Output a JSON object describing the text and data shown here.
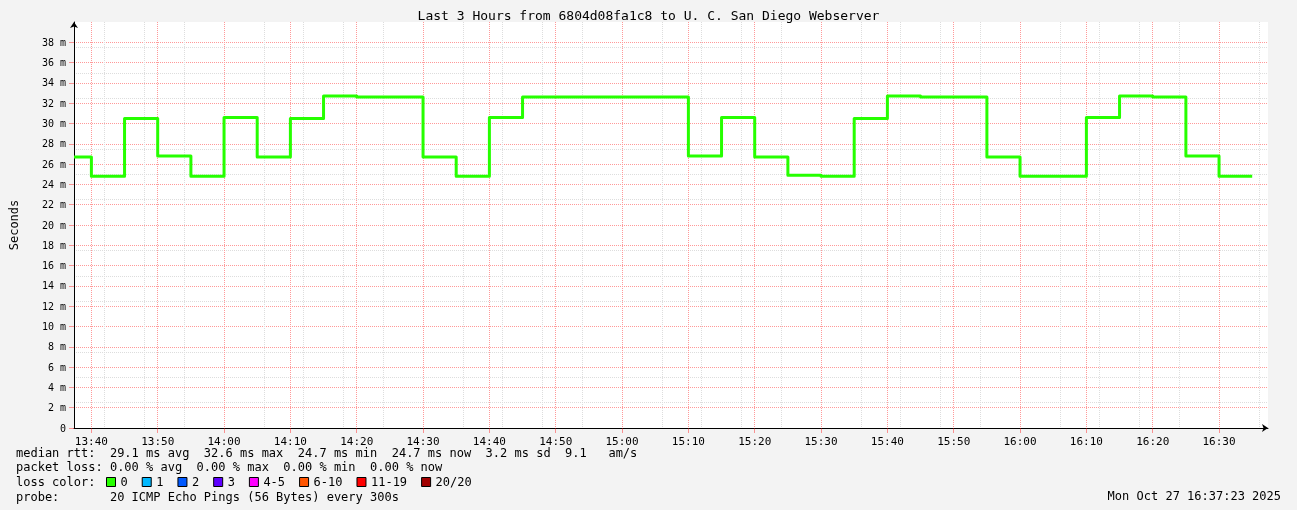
{
  "chart_data": {
    "type": "step",
    "title": "Last 3 Hours from 6804d08fa1c8 to U. C. San Diego Webserver",
    "ylabel": "Seconds",
    "legend_title": "loss color:",
    "x": [
      13.623,
      13.6667,
      13.75,
      13.8333,
      13.9167,
      14,
      14.0833,
      14.1667,
      14.25,
      14.3333,
      14.4167,
      14.5,
      14.5833,
      14.6667,
      14.75,
      14.8333,
      14.9167,
      15,
      15.0833,
      15.1667,
      15.25,
      15.3333,
      15.4167,
      15.5,
      15.5833,
      15.6667,
      15.75,
      15.8333,
      15.9167,
      16,
      16.0833,
      16.1667,
      16.25,
      16.3333,
      16.4167,
      16.5,
      16.5833
    ],
    "series": [
      {
        "name": "0",
        "color": "#26ff00",
        "values": [
          26.7,
          24.8,
          30.5,
          26.8,
          24.8,
          30.6,
          26.7,
          30.5,
          32.7,
          32.6,
          32.6,
          26.7,
          24.8,
          30.6,
          32.6,
          32.6,
          32.6,
          32.6,
          32.6,
          26.8,
          30.6,
          26.7,
          24.9,
          24.8,
          30.5,
          32.7,
          32.6,
          32.6,
          26.7,
          24.8,
          24.8,
          30.6,
          32.7,
          32.6,
          26.8,
          24.8,
          24.8
        ]
      },
      {
        "name": "1",
        "color": "#00b8ff",
        "values": [
          null,
          null,
          null,
          null,
          null,
          null,
          null,
          null,
          null,
          null,
          null,
          null,
          null,
          null,
          null,
          null,
          null,
          null,
          null,
          null,
          null,
          null,
          null,
          null,
          null,
          null,
          null,
          null,
          null,
          null,
          null,
          null,
          null,
          null,
          null,
          null,
          null
        ]
      },
      {
        "name": "2",
        "color": "#0059ff",
        "values": [
          null,
          null,
          null,
          null,
          null,
          null,
          null,
          null,
          null,
          null,
          null,
          null,
          null,
          null,
          null,
          null,
          null,
          null,
          null,
          null,
          null,
          null,
          null,
          null,
          null,
          null,
          null,
          null,
          null,
          null,
          null,
          null,
          null,
          null,
          null,
          null,
          null
        ]
      },
      {
        "name": "3",
        "color": "#5e00ff",
        "values": [
          null,
          null,
          null,
          null,
          null,
          null,
          null,
          null,
          null,
          null,
          null,
          null,
          null,
          null,
          null,
          null,
          null,
          null,
          null,
          null,
          null,
          null,
          null,
          null,
          null,
          null,
          null,
          null,
          null,
          null,
          null,
          null,
          null,
          null,
          null,
          null,
          null
        ]
      },
      {
        "name": "4-5",
        "color": "#ff00ff",
        "values": [
          null,
          null,
          null,
          null,
          null,
          null,
          null,
          null,
          null,
          null,
          null,
          null,
          null,
          null,
          null,
          null,
          null,
          null,
          null,
          null,
          null,
          null,
          null,
          null,
          null,
          null,
          null,
          null,
          null,
          null,
          null,
          null,
          null,
          null,
          null,
          null,
          null
        ]
      },
      {
        "name": "6-10",
        "color": "#ff5500",
        "values": [
          null,
          null,
          null,
          null,
          null,
          null,
          null,
          null,
          null,
          null,
          null,
          null,
          null,
          null,
          null,
          null,
          null,
          null,
          null,
          null,
          null,
          null,
          null,
          null,
          null,
          null,
          null,
          null,
          null,
          null,
          null,
          null,
          null,
          null,
          null,
          null,
          null
        ]
      },
      {
        "name": "11-19",
        "color": "#ff0000",
        "values": [
          null,
          null,
          null,
          null,
          null,
          null,
          null,
          null,
          null,
          null,
          null,
          null,
          null,
          null,
          null,
          null,
          null,
          null,
          null,
          null,
          null,
          null,
          null,
          null,
          null,
          null,
          null,
          null,
          null,
          null,
          null,
          null,
          null,
          null,
          null,
          null,
          null
        ]
      },
      {
        "name": "20/20",
        "color": "#a10000",
        "values": [
          null,
          null,
          null,
          null,
          null,
          null,
          null,
          null,
          null,
          null,
          null,
          null,
          null,
          null,
          null,
          null,
          null,
          null,
          null,
          null,
          null,
          null,
          null,
          null,
          null,
          null,
          null,
          null,
          null,
          null,
          null,
          null,
          null,
          null,
          null,
          null,
          null
        ]
      }
    ],
    "xlim": [
      13.623,
      16.623
    ],
    "xticks": [
      {
        "value": 13.6667,
        "label": "13:40"
      },
      {
        "value": 13.8333,
        "label": "13:50"
      },
      {
        "value": 14,
        "label": "14:00"
      },
      {
        "value": 14.1667,
        "label": "14:10"
      },
      {
        "value": 14.3333,
        "label": "14:20"
      },
      {
        "value": 14.5,
        "label": "14:30"
      },
      {
        "value": 14.6667,
        "label": "14:40"
      },
      {
        "value": 14.8333,
        "label": "14:50"
      },
      {
        "value": 15,
        "label": "15:00"
      },
      {
        "value": 15.1667,
        "label": "15:10"
      },
      {
        "value": 15.3333,
        "label": "15:20"
      },
      {
        "value": 15.5,
        "label": "15:30"
      },
      {
        "value": 15.6667,
        "label": "15:40"
      },
      {
        "value": 15.8333,
        "label": "15:50"
      },
      {
        "value": 16,
        "label": "16:00"
      },
      {
        "value": 16.1667,
        "label": "16:10"
      },
      {
        "value": 16.3333,
        "label": "16:20"
      },
      {
        "value": 16.5,
        "label": "16:30"
      }
    ],
    "ylim": [
      0,
      40
    ],
    "yticks": [
      0,
      {
        "value": 2,
        "label": "2 m"
      },
      {
        "value": 4,
        "label": "4 m"
      },
      {
        "value": 6,
        "label": "6 m"
      },
      {
        "value": 8,
        "label": "8 m"
      },
      {
        "value": 10,
        "label": "10 m"
      },
      {
        "value": 12,
        "label": "12 m"
      },
      {
        "value": 14,
        "label": "14 m"
      },
      {
        "value": 16,
        "label": "16 m"
      },
      {
        "value": 18,
        "label": "18 m"
      },
      {
        "value": 20,
        "label": "20 m"
      },
      {
        "value": 22,
        "label": "22 m"
      },
      {
        "value": 24,
        "label": "24 m"
      },
      {
        "value": 26,
        "label": "26 m"
      },
      {
        "value": 28,
        "label": "28 m"
      },
      {
        "value": 30,
        "label": "30 m"
      },
      {
        "value": 32,
        "label": "32 m"
      },
      {
        "value": 34,
        "label": "34 m"
      },
      {
        "value": 36,
        "label": "36 m"
      },
      {
        "value": 38,
        "label": "38 m"
      }
    ],
    "grid": true,
    "legend": "bottom left",
    "marker": "none",
    "line_style": "solid",
    "annotations": [
      "median rtt:  29.1 ms avg  32.6 ms max  24.7 ms min  24.7 ms now  3.2 ms sd  9.1   am/s",
      "packet loss: 0.00 % avg  0.00 % max  0.00 % min  0.00 % now",
      "probe:       20 ICMP Echo Pings (56 Bytes) every 300s",
      "Mon Oct 27 16:37:23 2025"
    ]
  }
}
